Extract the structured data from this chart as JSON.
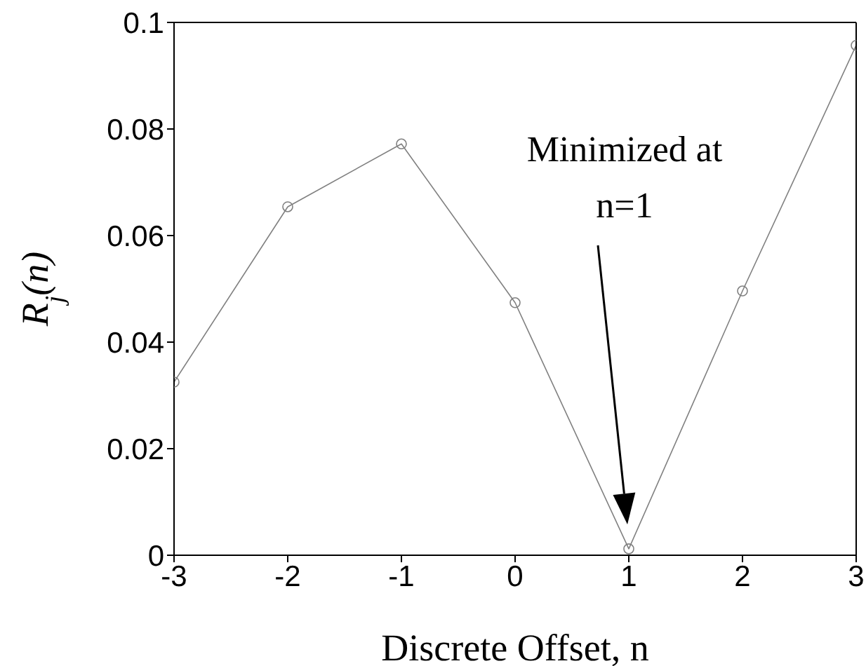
{
  "chart_data": {
    "type": "line",
    "xlabel": "Discrete Offset, n",
    "ylabel": "R$_{j}$(n)",
    "x": [
      -3,
      -2,
      -1,
      0,
      1,
      2,
      3
    ],
    "series": [
      {
        "color": "#808080",
        "values": [
          0.0325,
          0.0654,
          0.0772,
          0.0474,
          0.0012,
          0.0496,
          0.0957
        ]
      }
    ],
    "xlim": [
      -3,
      3
    ],
    "xticks": [
      -3,
      -2,
      -1,
      0,
      1,
      2,
      3
    ],
    "ylim": [
      0,
      0.1
    ],
    "yticks": [
      0,
      0.02,
      0.04,
      0.06,
      0.08,
      0.1
    ],
    "grid": false,
    "legend": false,
    "marker": "circle",
    "line_style": "solid",
    "annotations": [
      "Minimized at n=1"
    ]
  }
}
